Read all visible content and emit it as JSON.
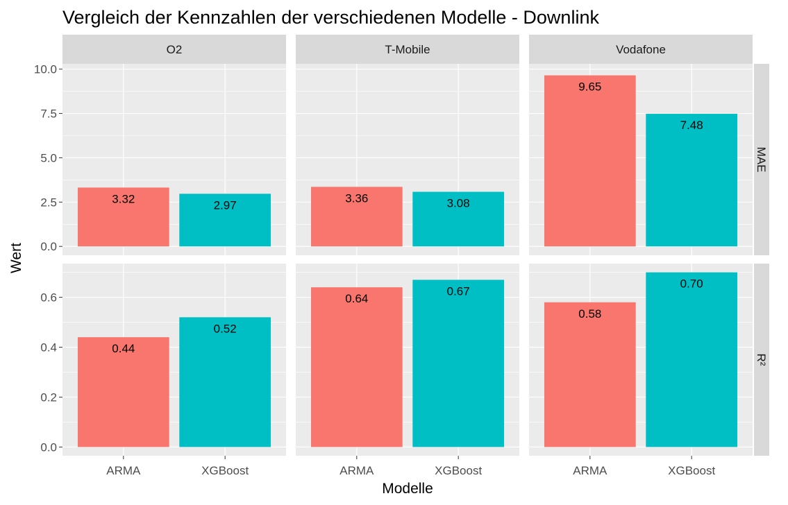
{
  "chart_data": {
    "type": "bar",
    "title": "Vergleich der Kennzahlen der verschiedenen Modelle - Downlink",
    "xlabel": "Modelle",
    "ylabel": "Wert",
    "categories": [
      "ARMA",
      "XGBoost"
    ],
    "column_facets": [
      "O2",
      "T-Mobile",
      "Vodafone"
    ],
    "row_facets": [
      "MAE",
      "R²"
    ],
    "colors": {
      "ARMA": "#F8766D",
      "XGBoost": "#00BFC4"
    },
    "legend": "none",
    "grid": true,
    "panels": [
      {
        "provider": "O2",
        "metric": "MAE",
        "values": [
          3.32,
          2.97
        ],
        "labels": [
          "3.32",
          "2.97"
        ]
      },
      {
        "provider": "T-Mobile",
        "metric": "MAE",
        "values": [
          3.36,
          3.08
        ],
        "labels": [
          "3.36",
          "3.08"
        ]
      },
      {
        "provider": "Vodafone",
        "metric": "MAE",
        "values": [
          9.65,
          7.48
        ],
        "labels": [
          "9.65",
          "7.48"
        ]
      },
      {
        "provider": "O2",
        "metric": "R²",
        "values": [
          0.44,
          0.52
        ],
        "labels": [
          "0.44",
          "0.52"
        ]
      },
      {
        "provider": "T-Mobile",
        "metric": "R²",
        "values": [
          0.64,
          0.67
        ],
        "labels": [
          "0.64",
          "0.67"
        ]
      },
      {
        "provider": "Vodafone",
        "metric": "R²",
        "values": [
          0.58,
          0.7
        ],
        "labels": [
          "0.58",
          "0.70"
        ]
      }
    ],
    "rows": {
      "MAE": {
        "ylim": [
          -0.5,
          10.3
        ],
        "ticks": [
          0,
          2.5,
          5,
          7.5,
          10
        ],
        "tick_labels": [
          "0.0",
          "2.5",
          "5.0",
          "7.5",
          "10.0"
        ]
      },
      "R²": {
        "ylim": [
          -0.035,
          0.735
        ],
        "ticks": [
          0,
          0.2,
          0.4,
          0.6
        ],
        "tick_labels": [
          "0.0",
          "0.2",
          "0.4",
          "0.6"
        ]
      }
    }
  }
}
